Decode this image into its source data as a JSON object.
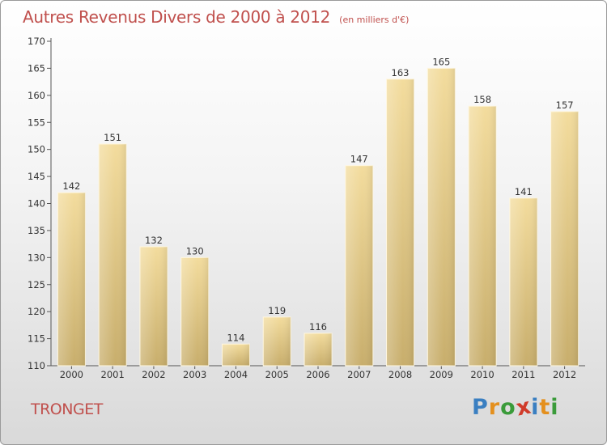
{
  "header": {
    "title": "Autres Revenus Divers de 2000 à 2012",
    "unit": "(en milliers d'€)"
  },
  "footer": {
    "place": "TRONGET",
    "logo_text": "Proxiti",
    "logo_letters": [
      {
        "char": "P",
        "color": "#3a7fc1"
      },
      {
        "char": "r",
        "color": "#e4901e"
      },
      {
        "char": "o",
        "color": "#3a9b3a"
      },
      {
        "char": "x",
        "color": "#d03b2a"
      },
      {
        "char": "i",
        "color": "#3a7fc1"
      },
      {
        "char": "t",
        "color": "#e4901e"
      },
      {
        "char": "i",
        "color": "#3a9b3a"
      }
    ]
  },
  "colors": {
    "title": "#c0504d",
    "bar_light": "#f3dc9d",
    "bar_dark": "#c8ae6c",
    "axis": "#555555"
  },
  "chart_data": {
    "type": "bar",
    "title": "Autres Revenus Divers de 2000 à 2012",
    "subtitle": "(en milliers d'€)",
    "categories": [
      "2000",
      "2001",
      "2002",
      "2003",
      "2004",
      "2005",
      "2006",
      "2007",
      "2008",
      "2009",
      "2010",
      "2011",
      "2012"
    ],
    "values": [
      142,
      151,
      132,
      130,
      114,
      119,
      116,
      147,
      163,
      165,
      158,
      141,
      157
    ],
    "ylim": [
      110,
      170
    ],
    "yticks": [
      110,
      115,
      120,
      125,
      130,
      135,
      140,
      145,
      150,
      155,
      160,
      165,
      170
    ],
    "xlabel": "",
    "ylabel": "",
    "grid": false,
    "legend": "none"
  }
}
